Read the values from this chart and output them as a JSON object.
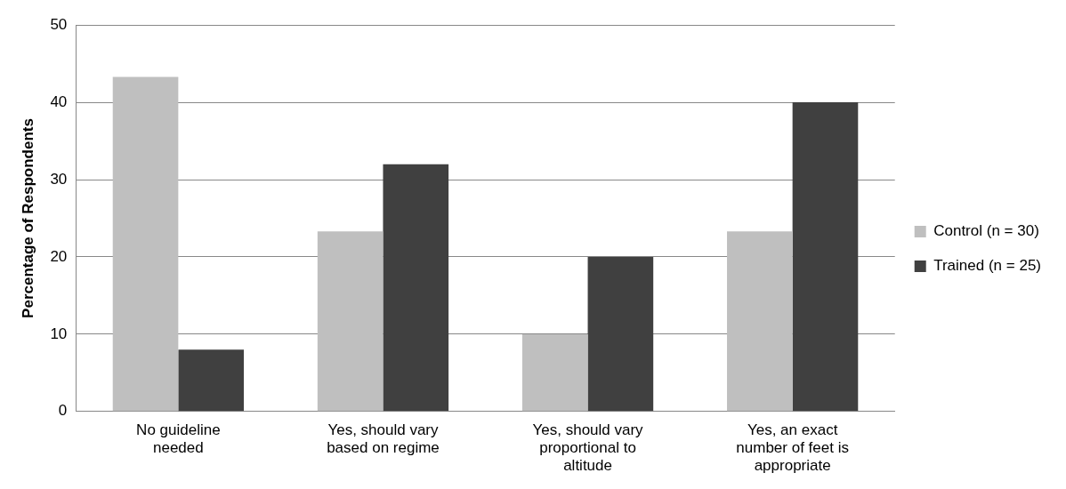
{
  "chart_data": {
    "type": "bar",
    "ylabel": "Percentage of Respondents",
    "categories": [
      "No guideline needed",
      "Yes, should vary based on regime",
      "Yes, should vary proportional to altitude",
      "Yes, an exact number of feet is appropriate"
    ],
    "series": [
      {
        "name": "Control (n = 30)",
        "color": "#bfbfbf",
        "values": [
          43.3,
          23.3,
          10,
          23.3
        ]
      },
      {
        "name": "Trained (n = 25)",
        "color": "#404040",
        "values": [
          8,
          32,
          20,
          40
        ]
      }
    ],
    "ylim": [
      0,
      50
    ],
    "yticks": [
      0,
      10,
      20,
      30,
      40,
      50
    ],
    "grid": "y",
    "legend": "right"
  }
}
